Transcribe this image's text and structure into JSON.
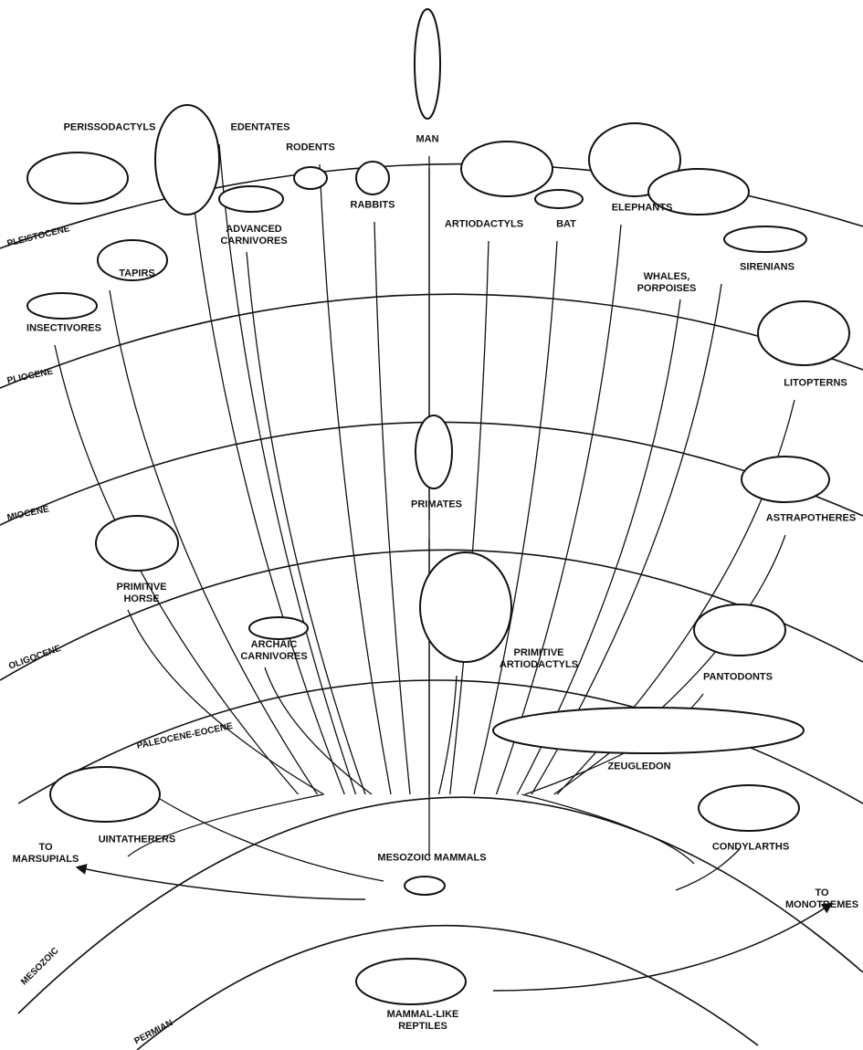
{
  "eras": [
    "PLEISTOCENE",
    "PLIOCENE",
    "MIOCENE",
    "OLIGOCENE",
    "PALEOCENE-EOCENE",
    "MESOZOIC",
    "PERMIAN"
  ],
  "groups": [
    "PERISSODACTYLS",
    "EDENTATES",
    "RODENTS",
    "RABBITS",
    "MAN",
    "ARTIODACTYLS",
    "BAT",
    "ELEPHANTS",
    "WHALES, PORPOISES",
    "SIRENIANS",
    "INSECTIVORES",
    "TAPIRS",
    "ADVANCED CARNIVORES",
    "LITOPTERNS",
    "PRIMATES",
    "ASTRAPOTHERES",
    "PRIMITIVE HORSE",
    "ARCHAIC CARNIVORES",
    "PRIMITIVE ARTIODACTYLS",
    "PANTODONTS",
    "ZEUGLEDON",
    "UINTATHERERS",
    "CONDYLARTHS",
    "TO MARSUPIALS",
    "MESOZOIC MAMMALS",
    "TO MONOTREMES",
    "MAMMAL-LIKE REPTILES"
  ]
}
